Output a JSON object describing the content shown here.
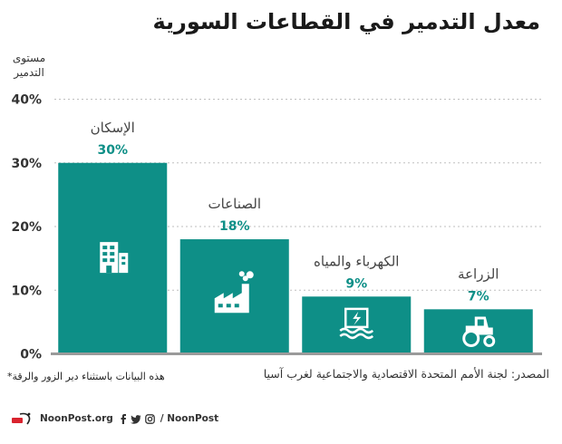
{
  "title": "معدل التدمير في القطاعات السورية",
  "ylabel": "مستوى التدمير",
  "source": "المصدر: لجنة الأمم المتحدة الاقتصادية والاجتماعية لغرب آسيا",
  "footnote": "هذه البيانات باستثناء دير الزور والرقة*",
  "brand": {
    "site": "NoonPost.org",
    "handle": "/ NoonPost",
    "icons": [
      "facebook-icon",
      "twitter-icon",
      "instagram-icon"
    ]
  },
  "colors": {
    "bar": "#0e8f87",
    "value_label": "#0e8f87",
    "axis": "#9a9a9a",
    "grid": "#bfbfbf"
  },
  "chart_data": {
    "type": "bar",
    "categories": [
      "الإسكان",
      "الصناعات",
      "الكهرباء والمياه",
      "الزراعة"
    ],
    "values": [
      30,
      18,
      9,
      7
    ],
    "value_labels": [
      "30%",
      "18%",
      "9%",
      "7%"
    ],
    "icons": [
      "building-icon",
      "factory-icon",
      "dam-icon",
      "tractor-icon"
    ],
    "yticks": [
      "0%",
      "10%",
      "20%",
      "30%",
      "40%"
    ],
    "ylim": [
      0,
      40
    ],
    "grid": true,
    "ylabel": "مستوى التدمير"
  }
}
